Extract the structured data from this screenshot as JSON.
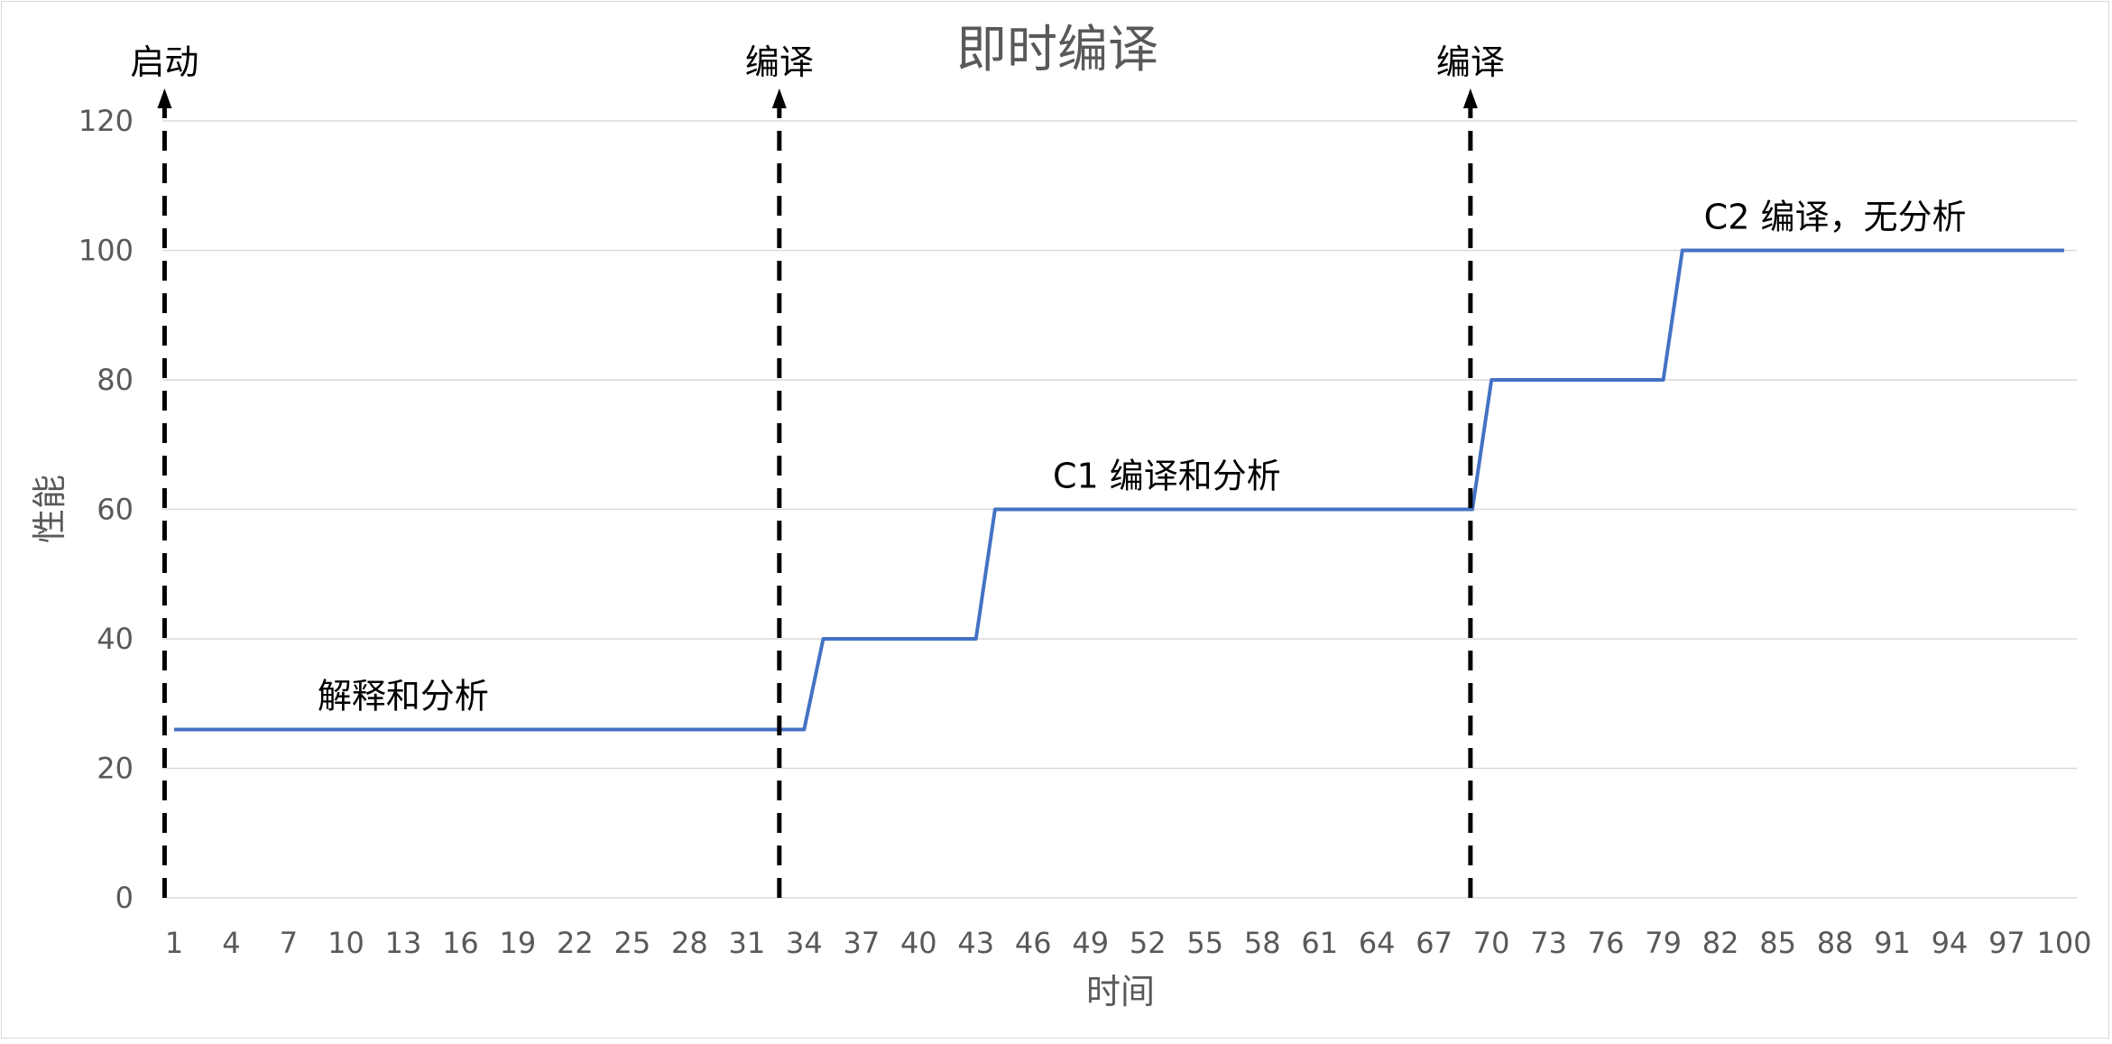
{
  "chart_data": {
    "type": "line",
    "title": "即时编译",
    "xlabel": "时间",
    "ylabel": "性能",
    "ylim": [
      0,
      120
    ],
    "yticks": [
      "0",
      "20",
      "40",
      "60",
      "80",
      "100",
      "120"
    ],
    "xlim": [
      1,
      100
    ],
    "xticks": [
      "1",
      "4",
      "7",
      "10",
      "13",
      "16",
      "19",
      "22",
      "25",
      "28",
      "31",
      "34",
      "37",
      "40",
      "43",
      "46",
      "49",
      "52",
      "55",
      "58",
      "61",
      "64",
      "67",
      "70",
      "73",
      "76",
      "79",
      "82",
      "85",
      "88",
      "91",
      "94",
      "97",
      "100"
    ],
    "grid": true,
    "legend": "none",
    "series": [
      {
        "color": "#4472c4",
        "points": [
          [
            1,
            26
          ],
          [
            34,
            26
          ],
          [
            35,
            40
          ],
          [
            43,
            40
          ],
          [
            44,
            60
          ],
          [
            69,
            60
          ],
          [
            70,
            80
          ],
          [
            79,
            80
          ],
          [
            80,
            100
          ],
          [
            100,
            100
          ]
        ]
      }
    ],
    "markers": [
      {
        "x": 0.5,
        "label": "启动"
      },
      {
        "x": 32.7,
        "label": "编译"
      },
      {
        "x": 68.9,
        "label": "编译"
      }
    ],
    "annotations": [
      {
        "text": "解释和分析",
        "x": 13,
        "y": 26
      },
      {
        "text": "C1 编译和分析",
        "x": 53,
        "y": 60
      },
      {
        "text": "C2 编译，无分析",
        "x": 88,
        "y": 100
      }
    ]
  }
}
